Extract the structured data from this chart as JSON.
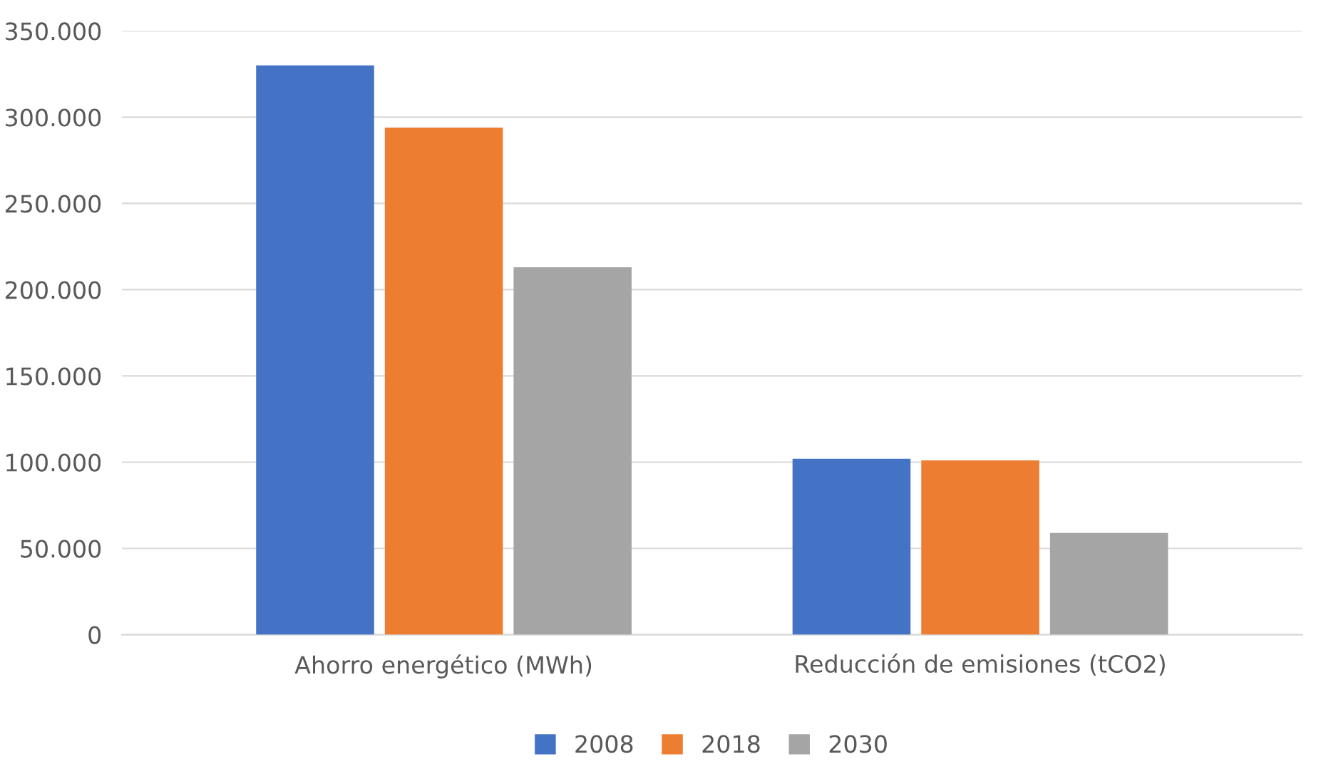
{
  "chart_data": {
    "type": "bar",
    "categories": [
      "Ahorro energético (MWh)",
      "Reducción de emisiones (tCO2)"
    ],
    "series": [
      {
        "name": "2008",
        "color": "#4472c4",
        "values": [
          330000,
          102000
        ]
      },
      {
        "name": "2018",
        "color": "#ed7d31",
        "values": [
          294000,
          101000
        ]
      },
      {
        "name": "2030",
        "color": "#a5a5a5",
        "values": [
          213000,
          59000
        ]
      }
    ],
    "ylim": [
      0,
      350000
    ],
    "yticks": [
      0,
      {
        "value": 50000,
        "label": "50.000"
      },
      {
        "value": 100000,
        "label": "100.000"
      },
      {
        "value": 150000,
        "label": "150.000"
      },
      {
        "value": 200000,
        "label": "200.000"
      },
      {
        "value": 250000,
        "label": "250.000"
      },
      {
        "value": 300000,
        "label": "300.000"
      },
      {
        "value": 350000,
        "label": "350.000"
      }
    ],
    "grid": "y",
    "legend": "bottom"
  }
}
